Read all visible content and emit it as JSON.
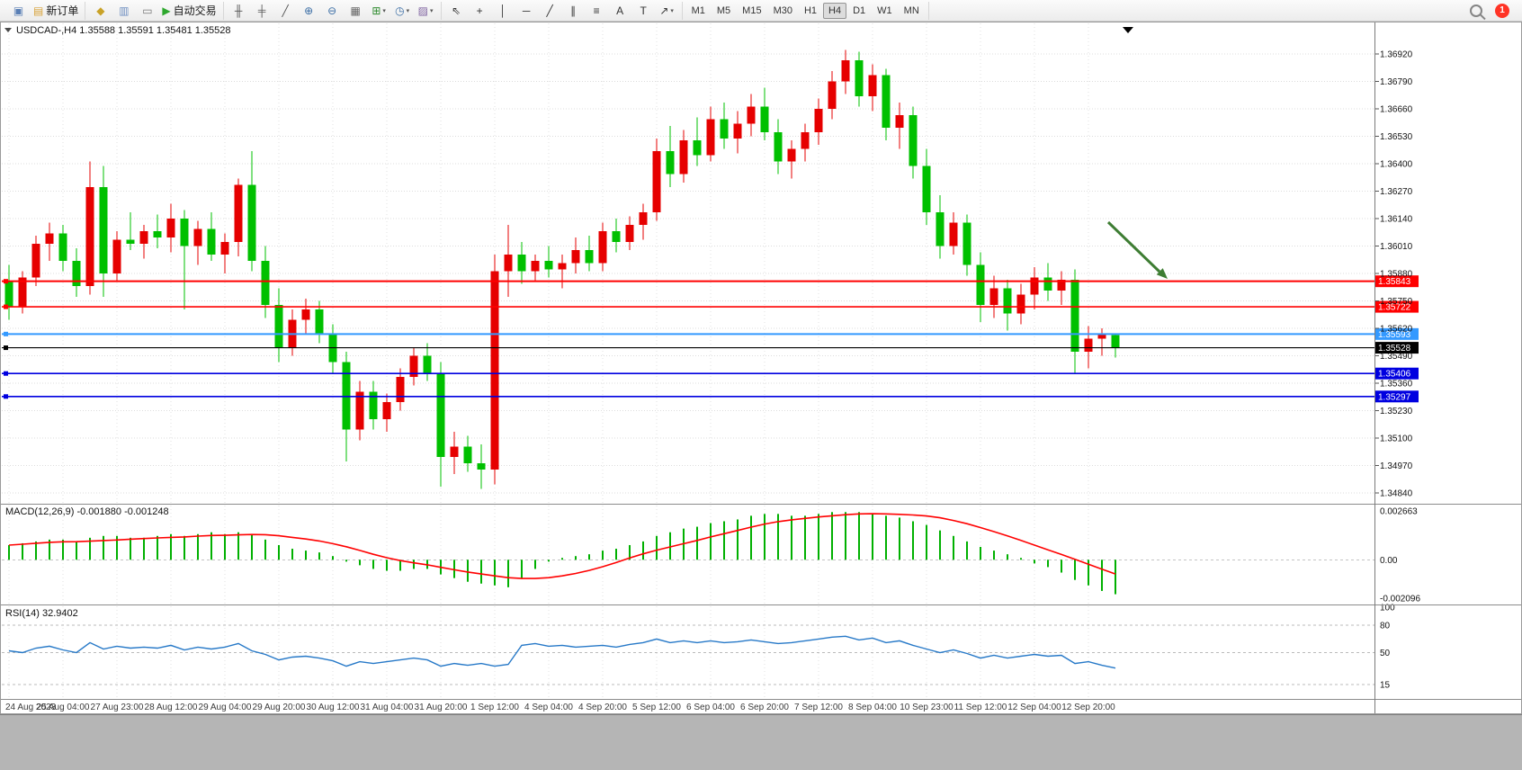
{
  "window": {
    "chart_header": "USDCAD-,H4   1.35588 1.35591 1.35481 1.35528",
    "symbol": "USDCAD-",
    "period": "H4",
    "ohlc": {
      "open": "1.35588",
      "high": "1.35591",
      "low": "1.35481",
      "close": "1.35528"
    }
  },
  "toolbar": {
    "badge_count": "1",
    "groups": [
      {
        "items": [
          {
            "kind": "iconbtn",
            "name": "new-chart-button",
            "glyph": "▣",
            "color": "#5a7fb5"
          },
          {
            "kind": "labelbtn",
            "name": "new-order-button",
            "glyph": "▤",
            "color": "#d8a33a",
            "label": "新订单"
          }
        ]
      },
      {
        "items": [
          {
            "kind": "iconbtn",
            "name": "profiles-button",
            "glyph": "◆",
            "color": "#c9a227"
          },
          {
            "kind": "iconbtn",
            "name": "navigator-button",
            "glyph": "▥",
            "color": "#6f8fc0"
          },
          {
            "kind": "iconbtn",
            "name": "terminal-button",
            "glyph": "▭",
            "color": "#777777"
          },
          {
            "kind": "labelbtn",
            "name": "autotrading-button",
            "glyph": "▶",
            "color": "#2ea82e",
            "label": "自动交易"
          }
        ]
      },
      {
        "items": [
          {
            "kind": "iconbtn",
            "name": "bar-chart-button",
            "glyph": "╫",
            "color": "#555555"
          },
          {
            "kind": "iconbtn",
            "name": "candlestick-chart-button",
            "glyph": "╪",
            "color": "#555555"
          },
          {
            "kind": "iconbtn",
            "name": "line-chart-button",
            "glyph": "╱",
            "color": "#555555"
          },
          {
            "kind": "iconbtn",
            "name": "zoom-in-button",
            "glyph": "⊕",
            "color": "#3b6ea5"
          },
          {
            "kind": "iconbtn",
            "name": "zoom-out-button",
            "glyph": "⊖",
            "color": "#3b6ea5"
          },
          {
            "kind": "iconbtn",
            "name": "tile-windows-button",
            "glyph": "▦",
            "color": "#666666"
          },
          {
            "kind": "iconbtn dd",
            "name": "indicators-button",
            "glyph": "⊞",
            "color": "#2e8b2e"
          },
          {
            "kind": "iconbtn dd",
            "name": "periods-button",
            "glyph": "◷",
            "color": "#3b6ea5"
          },
          {
            "kind": "iconbtn dd",
            "name": "templates-button",
            "glyph": "▨",
            "color": "#8064a2"
          }
        ]
      },
      {
        "items": [
          {
            "kind": "iconbtn",
            "name": "cursor-button",
            "glyph": "⇖",
            "color": "#333333"
          },
          {
            "kind": "iconbtn",
            "name": "crosshair-button",
            "glyph": "+",
            "color": "#333333"
          },
          {
            "kind": "iconbtn",
            "name": "vertical-line-button",
            "glyph": "│",
            "color": "#333333"
          },
          {
            "kind": "iconbtn",
            "name": "horizontal-line-button",
            "glyph": "─",
            "color": "#333333"
          },
          {
            "kind": "iconbtn",
            "name": "trendline-button",
            "glyph": "╱",
            "color": "#333333"
          },
          {
            "kind": "iconbtn",
            "name": "equidistant-channel-button",
            "glyph": "∥",
            "color": "#333333"
          },
          {
            "kind": "iconbtn",
            "name": "fibonacci-button",
            "glyph": "≡",
            "color": "#333333"
          },
          {
            "kind": "iconbtn",
            "name": "text-button",
            "glyph": "A",
            "color": "#333333"
          },
          {
            "kind": "iconbtn",
            "name": "text-label-button",
            "glyph": "T",
            "color": "#333333"
          },
          {
            "kind": "iconbtn dd",
            "name": "arrows-button",
            "glyph": "↗",
            "color": "#333333"
          }
        ]
      },
      {
        "items": [
          {
            "kind": "tf",
            "name": "timeframe-m1-button",
            "label": "M1"
          },
          {
            "kind": "tf",
            "name": "timeframe-m5-button",
            "label": "M5"
          },
          {
            "kind": "tf",
            "name": "timeframe-m15-button",
            "label": "M15"
          },
          {
            "kind": "tf",
            "name": "timeframe-m30-button",
            "label": "M30"
          },
          {
            "kind": "tf",
            "name": "timeframe-h1-button",
            "label": "H1"
          },
          {
            "kind": "tf",
            "name": "timeframe-h4-button",
            "label": "H4",
            "active": true
          },
          {
            "kind": "tf",
            "name": "timeframe-d1-button",
            "label": "D1"
          },
          {
            "kind": "tf",
            "name": "timeframe-w1-button",
            "label": "W1"
          },
          {
            "kind": "tf",
            "name": "timeframe-mn-button",
            "label": "MN"
          }
        ]
      }
    ]
  },
  "chart_data": {
    "type": "candlestick",
    "title": "USDCAD-,H4",
    "up_color": "#E60000",
    "down_color": "#00C000",
    "price_axis": {
      "labels": [
        "1.36920",
        "1.36790",
        "1.36660",
        "1.36530",
        "1.36400",
        "1.36270",
        "1.36140",
        "1.36010",
        "1.35880",
        "1.35750",
        "1.35620",
        "1.35490",
        "1.35360",
        "1.35230",
        "1.35100",
        "1.34970",
        "1.34840"
      ],
      "max": 1.3692,
      "min": 1.3484,
      "step": 0.0013
    },
    "x_labels": [
      "24 Aug 2023",
      "25 Aug 04:00",
      "27 Aug 23:00",
      "28 Aug 12:00",
      "29 Aug 04:00",
      "29 Aug 20:00",
      "30 Aug 12:00",
      "31 Aug 04:00",
      "31 Aug 20:00",
      "1 Sep 12:00",
      "4 Sep 04:00",
      "4 Sep 20:00",
      "5 Sep 12:00",
      "6 Sep 04:00",
      "6 Sep 20:00",
      "7 Sep 12:00",
      "8 Sep 04:00",
      "10 Sep 23:00",
      "11 Sep 12:00",
      "12 Sep 04:00",
      "12 Sep 20:00"
    ],
    "x_label_every": 4,
    "candles": [
      [
        1.3584,
        1.3592,
        1.3566,
        1.3572
      ],
      [
        1.3572,
        1.3589,
        1.3569,
        1.3586
      ],
      [
        1.3586,
        1.3606,
        1.3582,
        1.3602
      ],
      [
        1.3602,
        1.3612,
        1.3594,
        1.3607
      ],
      [
        1.3607,
        1.3611,
        1.3589,
        1.3594
      ],
      [
        1.3594,
        1.36,
        1.3577,
        1.3582
      ],
      [
        1.3582,
        1.3641,
        1.3578,
        1.3629
      ],
      [
        1.3629,
        1.3639,
        1.3577,
        1.3588
      ],
      [
        1.3588,
        1.3608,
        1.3584,
        1.3604
      ],
      [
        1.3604,
        1.3617,
        1.3599,
        1.3602
      ],
      [
        1.3602,
        1.3611,
        1.3595,
        1.3608
      ],
      [
        1.3608,
        1.3616,
        1.36,
        1.3605
      ],
      [
        1.3605,
        1.3621,
        1.3598,
        1.3614
      ],
      [
        1.3614,
        1.3618,
        1.3571,
        1.3601
      ],
      [
        1.3601,
        1.3613,
        1.3592,
        1.3609
      ],
      [
        1.3609,
        1.3617,
        1.3594,
        1.3597
      ],
      [
        1.3597,
        1.3607,
        1.3588,
        1.3603
      ],
      [
        1.3603,
        1.3633,
        1.3596,
        1.363
      ],
      [
        1.363,
        1.3646,
        1.3589,
        1.3594
      ],
      [
        1.3594,
        1.3601,
        1.3567,
        1.3573
      ],
      [
        1.3573,
        1.3581,
        1.3546,
        1.3553
      ],
      [
        1.3553,
        1.3571,
        1.3549,
        1.3566
      ],
      [
        1.3566,
        1.3576,
        1.3559,
        1.3571
      ],
      [
        1.3571,
        1.3575,
        1.3555,
        1.3559
      ],
      [
        1.3559,
        1.3564,
        1.3541,
        1.3546
      ],
      [
        1.3546,
        1.3551,
        1.3499,
        1.3514
      ],
      [
        1.3514,
        1.3537,
        1.3509,
        1.3532
      ],
      [
        1.3532,
        1.3537,
        1.3514,
        1.3519
      ],
      [
        1.3519,
        1.3531,
        1.3513,
        1.3527
      ],
      [
        1.3527,
        1.3543,
        1.3523,
        1.3539
      ],
      [
        1.3539,
        1.3553,
        1.3535,
        1.3549
      ],
      [
        1.3549,
        1.3555,
        1.3537,
        1.3541
      ],
      [
        1.3541,
        1.3546,
        1.3487,
        1.3501
      ],
      [
        1.3501,
        1.3513,
        1.3493,
        1.3506
      ],
      [
        1.3506,
        1.3511,
        1.3494,
        1.3498
      ],
      [
        1.3498,
        1.3507,
        1.3486,
        1.3495
      ],
      [
        1.3495,
        1.3597,
        1.3488,
        1.3589
      ],
      [
        1.3589,
        1.3611,
        1.3577,
        1.3597
      ],
      [
        1.3597,
        1.3603,
        1.3583,
        1.3589
      ],
      [
        1.3589,
        1.3597,
        1.3584,
        1.3594
      ],
      [
        1.3594,
        1.3601,
        1.3586,
        1.359
      ],
      [
        1.359,
        1.3597,
        1.3581,
        1.3593
      ],
      [
        1.3593,
        1.3605,
        1.3588,
        1.3599
      ],
      [
        1.3599,
        1.3606,
        1.3589,
        1.3593
      ],
      [
        1.3593,
        1.3612,
        1.3589,
        1.3608
      ],
      [
        1.3608,
        1.3614,
        1.3598,
        1.3603
      ],
      [
        1.3603,
        1.3615,
        1.3599,
        1.3611
      ],
      [
        1.3611,
        1.3621,
        1.3604,
        1.3617
      ],
      [
        1.3617,
        1.3652,
        1.3613,
        1.3646
      ],
      [
        1.3646,
        1.3658,
        1.3629,
        1.3635
      ],
      [
        1.3635,
        1.3656,
        1.3631,
        1.3651
      ],
      [
        1.3651,
        1.3662,
        1.3639,
        1.3644
      ],
      [
        1.3644,
        1.3667,
        1.3641,
        1.3661
      ],
      [
        1.3661,
        1.3669,
        1.3647,
        1.3652
      ],
      [
        1.3652,
        1.3665,
        1.3645,
        1.3659
      ],
      [
        1.3659,
        1.3673,
        1.3653,
        1.3667
      ],
      [
        1.3667,
        1.3676,
        1.3651,
        1.3655
      ],
      [
        1.3655,
        1.3661,
        1.3635,
        1.3641
      ],
      [
        1.3641,
        1.3651,
        1.3633,
        1.3647
      ],
      [
        1.3647,
        1.3659,
        1.3641,
        1.3655
      ],
      [
        1.3655,
        1.3671,
        1.3649,
        1.3666
      ],
      [
        1.3666,
        1.3684,
        1.3661,
        1.3679
      ],
      [
        1.3679,
        1.3694,
        1.3673,
        1.3689
      ],
      [
        1.3689,
        1.3693,
        1.3667,
        1.3672
      ],
      [
        1.3672,
        1.3687,
        1.3665,
        1.3682
      ],
      [
        1.3682,
        1.3685,
        1.3651,
        1.3657
      ],
      [
        1.3657,
        1.3669,
        1.3647,
        1.3663
      ],
      [
        1.3663,
        1.3667,
        1.3633,
        1.3639
      ],
      [
        1.3639,
        1.3647,
        1.3611,
        1.3617
      ],
      [
        1.3617,
        1.3625,
        1.3595,
        1.3601
      ],
      [
        1.3601,
        1.3617,
        1.3597,
        1.3612
      ],
      [
        1.3612,
        1.3616,
        1.3587,
        1.3592
      ],
      [
        1.3592,
        1.3598,
        1.3565,
        1.3573
      ],
      [
        1.3573,
        1.3587,
        1.3567,
        1.3581
      ],
      [
        1.3581,
        1.3585,
        1.3561,
        1.3569
      ],
      [
        1.3569,
        1.3583,
        1.3564,
        1.3578
      ],
      [
        1.3578,
        1.3591,
        1.3571,
        1.3586
      ],
      [
        1.3586,
        1.3593,
        1.3575,
        1.358
      ],
      [
        1.358,
        1.3589,
        1.3573,
        1.3585
      ],
      [
        1.3585,
        1.359,
        1.3541,
        1.3551
      ],
      [
        1.3551,
        1.3563,
        1.3543,
        1.3557
      ],
      [
        1.3557,
        1.3562,
        1.3549,
        1.3559
      ],
      [
        1.35588,
        1.35591,
        1.35481,
        1.35528
      ]
    ],
    "hlines": [
      {
        "price": 1.35843,
        "label": "1.35843",
        "color": "#FF0000",
        "width": 2
      },
      {
        "price": 1.35722,
        "label": "1.35722",
        "color": "#FF0000",
        "width": 1.6
      },
      {
        "price": 1.35593,
        "label": "1.35593",
        "color": "#3399FF",
        "width": 2
      },
      {
        "price": 1.35528,
        "label": "1.35528",
        "color": "#000000",
        "width": 1.2
      },
      {
        "price": 1.35406,
        "label": "1.35406",
        "color": "#0000E0",
        "width": 1.6
      },
      {
        "price": 1.35297,
        "label": "1.35297",
        "color": "#0000E0",
        "width": 1.6
      }
    ],
    "arrow": {
      "color": "#3E7D33"
    },
    "macd": {
      "header": "MACD(12,26,9) -0.001880 -0.001248",
      "histogram_color": "#00B000",
      "signal_color": "#FF0000",
      "scale": {
        "max": 0.002663,
        "min": -0.002096,
        "labels": [
          "0.002663",
          "0.00",
          "-0.002096"
        ]
      },
      "values": [
        0.0008,
        0.0009,
        0.001,
        0.0011,
        0.0011,
        0.001,
        0.0012,
        0.0013,
        0.0013,
        0.0012,
        0.0012,
        0.0013,
        0.0014,
        0.0013,
        0.0014,
        0.0015,
        0.0014,
        0.0015,
        0.0014,
        0.0011,
        0.0008,
        0.0006,
        0.0005,
        0.0004,
        0.0002,
        -0.0001,
        -0.0003,
        -0.0005,
        -0.0006,
        -0.0006,
        -0.0005,
        -0.0005,
        -0.0008,
        -0.001,
        -0.0012,
        -0.0013,
        -0.0014,
        -0.0015,
        -0.001,
        -0.0005,
        -0.0001,
        0.0001,
        0.0002,
        0.0003,
        0.0005,
        0.0006,
        0.0008,
        0.001,
        0.0013,
        0.0015,
        0.0017,
        0.0018,
        0.002,
        0.0021,
        0.0022,
        0.0024,
        0.0025,
        0.0025,
        0.0024,
        0.0024,
        0.0025,
        0.0026,
        0.0026,
        0.0026,
        0.0025,
        0.0024,
        0.0023,
        0.0021,
        0.0019,
        0.0016,
        0.0013,
        0.001,
        0.0007,
        0.0005,
        0.0003,
        0.0001,
        -0.0002,
        -0.0004,
        -0.0007,
        -0.0011,
        -0.0014,
        -0.0017,
        -0.00188
      ]
    },
    "rsi": {
      "header": "RSI(14) 32.9402",
      "line_color": "#2779C8",
      "levels": [
        80,
        50,
        15
      ],
      "scale_labels": [
        "100",
        "80",
        "50",
        "15"
      ],
      "values": [
        52,
        50,
        55,
        57,
        53,
        50,
        61,
        54,
        57,
        55,
        56,
        55,
        58,
        53,
        56,
        54,
        56,
        60,
        52,
        48,
        42,
        45,
        46,
        44,
        41,
        35,
        40,
        38,
        40,
        42,
        44,
        42,
        35,
        38,
        36,
        38,
        35,
        37,
        58,
        60,
        57,
        58,
        56,
        57,
        58,
        56,
        59,
        61,
        65,
        61,
        63,
        61,
        63,
        61,
        62,
        64,
        62,
        60,
        61,
        63,
        65,
        67,
        68,
        64,
        66,
        61,
        63,
        58,
        54,
        50,
        53,
        49,
        44,
        47,
        44,
        46,
        48,
        46,
        47,
        38,
        40,
        36,
        32.94
      ]
    }
  }
}
